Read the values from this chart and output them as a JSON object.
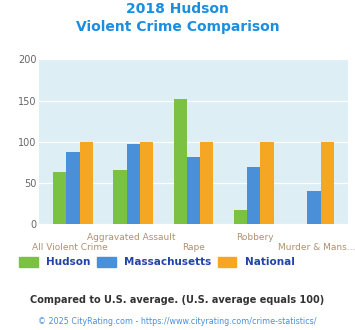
{
  "title_line1": "2018 Hudson",
  "title_line2": "Violent Crime Comparison",
  "categories": [
    "All Violent Crime",
    "Aggravated Assault",
    "Rape",
    "Robbery",
    "Murder & Mans..."
  ],
  "hudson": [
    63,
    66,
    152,
    18,
    0
  ],
  "massachusetts": [
    88,
    97,
    82,
    70,
    41
  ],
  "national": [
    100,
    100,
    100,
    100,
    100
  ],
  "color_hudson": "#7bc242",
  "color_mass": "#4a90d9",
  "color_national": "#f5a623",
  "ylim": [
    0,
    200
  ],
  "yticks": [
    0,
    50,
    100,
    150,
    200
  ],
  "legend_labels": [
    "Hudson",
    "Massachusetts",
    "National"
  ],
  "footnote1": "Compared to U.S. average. (U.S. average equals 100)",
  "footnote2": "© 2025 CityRating.com - https://www.cityrating.com/crime-statistics/",
  "title_color": "#1a8fe0",
  "xlabel_color": "#b09070",
  "legend_text_color": "#2244aa",
  "footnote1_color": "#333333",
  "footnote2_color": "#4a90d9",
  "bg_color": "#ddeef5",
  "bar_width": 0.22
}
